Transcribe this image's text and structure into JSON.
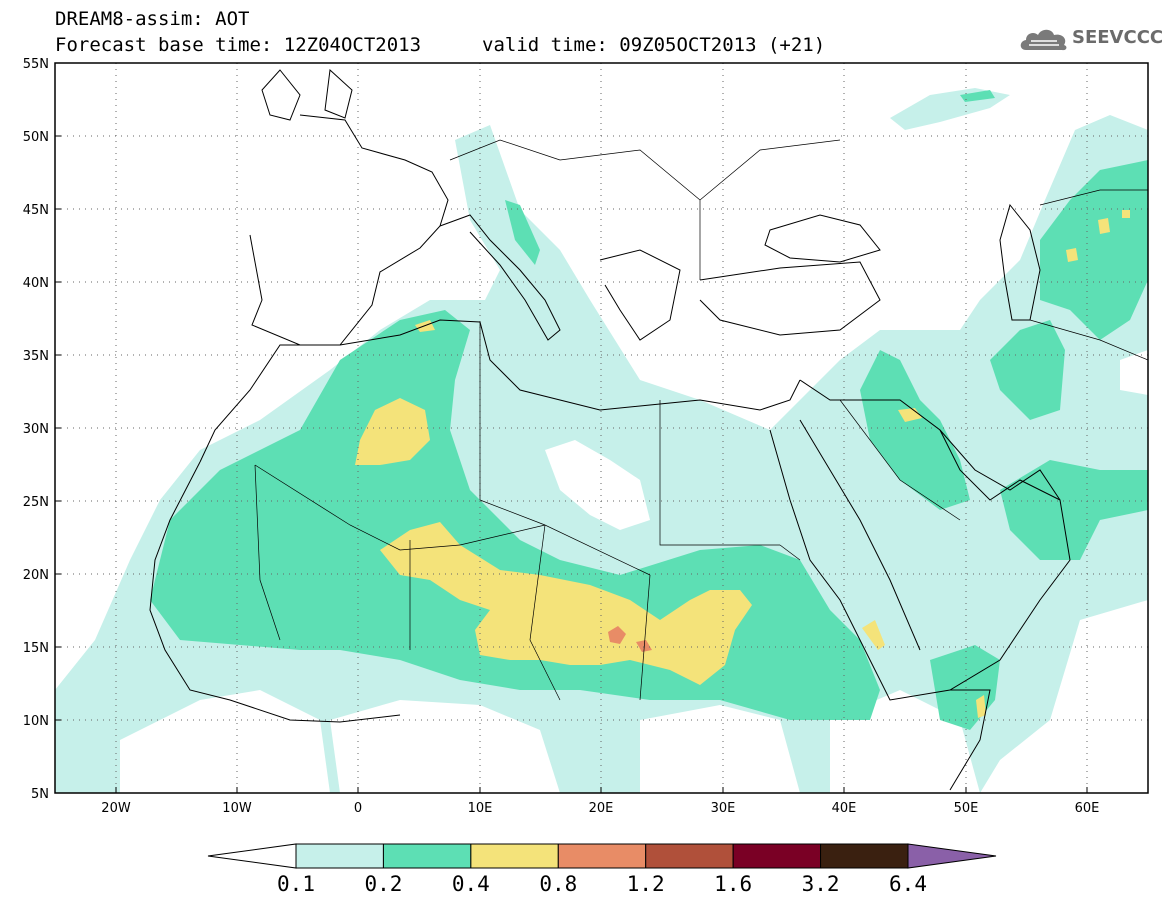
{
  "header": {
    "title_line1": "DREAM8-assim: AOT",
    "title_line2": "Forecast base time: 12Z04OCT2013",
    "valid_time": "valid time: 09Z05OCT2013 (+21)",
    "logo_text": "SEEVCCC"
  },
  "map": {
    "lon_range": [
      -25,
      65
    ],
    "lat_range": [
      5,
      55
    ],
    "lat_ticks": [
      "55N",
      "50N",
      "45N",
      "40N",
      "35N",
      "30N",
      "25N",
      "20N",
      "15N",
      "10N",
      "5N"
    ],
    "lon_ticks": [
      "20W",
      "10W",
      "0",
      "10E",
      "20E",
      "30E",
      "40E",
      "50E",
      "60E"
    ],
    "variable": "AOT",
    "grid_dotted": true
  },
  "colorbar": {
    "levels": [
      "0.1",
      "0.2",
      "0.4",
      "0.8",
      "1.2",
      "1.6",
      "3.2",
      "6.4"
    ],
    "colors": [
      "#ffffff",
      "#c6f0ea",
      "#5ddfb4",
      "#f4e37a",
      "#e88c66",
      "#b0503a",
      "#7a0025",
      "#3a2010",
      "#8a60a8"
    ]
  },
  "colors": {
    "aot_0_1": "#c6f0ea",
    "aot_0_2": "#5ddfb4",
    "aot_0_4": "#f4e37a",
    "aot_0_8": "#e88c66",
    "aot_1_2": "#c06050"
  }
}
